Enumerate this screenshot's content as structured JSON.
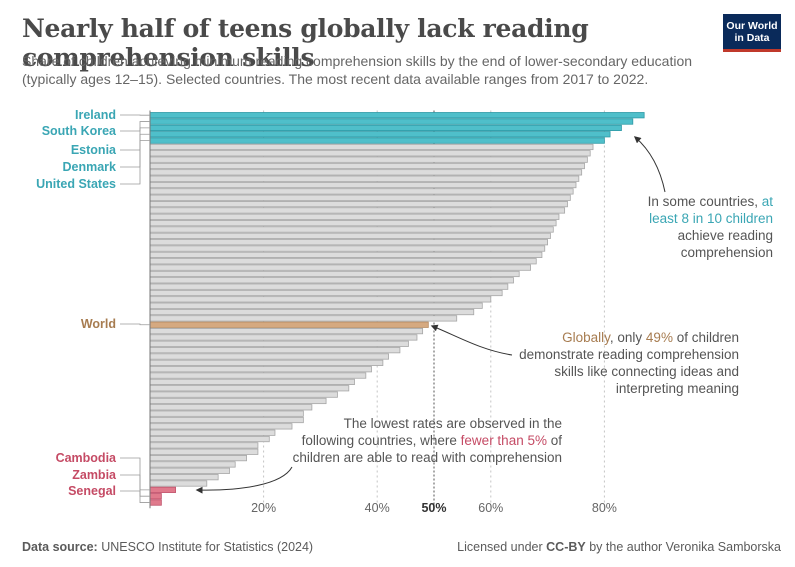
{
  "header": {
    "title": "Nearly half of teens globally lack reading comprehension skills",
    "subtitle": "Share of children achieving minimum reading comprehension skills by the end of lower-secondary education (typically ages 12–15). Selected countries. The most recent data available ranges from 2017 to 2022.",
    "logo_line1": "Our World",
    "logo_line2": "in Data"
  },
  "footer": {
    "source_label": "Data source:",
    "source_text": "UNESCO Institute for Statistics (2024)",
    "license_prefix": "Licensed under",
    "license_name": "CC-BY",
    "license_suffix": "by the author Veronika Samborska"
  },
  "colors": {
    "highlight_high": "#4fbfca",
    "highlight_low": "#e07a8c",
    "world": "#d5a980",
    "grey_bar": "#dcdcdc",
    "label_high": "#3aa6b4",
    "label_low": "#c54b65",
    "label_world": "#a77c50"
  },
  "chart_data": {
    "type": "bar",
    "orientation": "horizontal",
    "x_ticks": [
      20,
      40,
      50,
      60,
      80
    ],
    "x_tick_labels": [
      "20%",
      "40%",
      "50%",
      "60%",
      "80%"
    ],
    "bold_tick": 50,
    "xlim": [
      0,
      90
    ],
    "grid": "vertical dotted",
    "labelled_bars": [
      {
        "label": "Ireland",
        "value": 87,
        "group": "high"
      },
      {
        "label": "South Korea",
        "value": 85,
        "group": "high"
      },
      {
        "label": "Estonia",
        "value": 83,
        "group": "high"
      },
      {
        "label": "Denmark",
        "value": 81,
        "group": "high"
      },
      {
        "label": "United States",
        "value": 80,
        "group": "high"
      },
      {
        "label": "World",
        "value": 49,
        "group": "world"
      },
      {
        "label": "Cambodia",
        "value": 4.5,
        "group": "low"
      },
      {
        "label": "Zambia",
        "value": 2,
        "group": "low"
      },
      {
        "label": "Senegal",
        "value": 2,
        "group": "low"
      }
    ],
    "bars": [
      {
        "value": 87,
        "group": "high"
      },
      {
        "value": 85,
        "group": "high"
      },
      {
        "value": 83,
        "group": "high"
      },
      {
        "value": 81,
        "group": "high"
      },
      {
        "value": 80,
        "group": "high"
      },
      {
        "value": 78
      },
      {
        "value": 77.5
      },
      {
        "value": 77
      },
      {
        "value": 76.5
      },
      {
        "value": 76
      },
      {
        "value": 75.5
      },
      {
        "value": 75
      },
      {
        "value": 74.5
      },
      {
        "value": 74
      },
      {
        "value": 73.5
      },
      {
        "value": 73
      },
      {
        "value": 72
      },
      {
        "value": 71.5
      },
      {
        "value": 71
      },
      {
        "value": 70.5
      },
      {
        "value": 70
      },
      {
        "value": 69.5
      },
      {
        "value": 69
      },
      {
        "value": 68
      },
      {
        "value": 67
      },
      {
        "value": 65
      },
      {
        "value": 64
      },
      {
        "value": 63
      },
      {
        "value": 62
      },
      {
        "value": 60
      },
      {
        "value": 58.5
      },
      {
        "value": 57
      },
      {
        "value": 54
      },
      {
        "value": 49,
        "group": "world"
      },
      {
        "value": 48
      },
      {
        "value": 47
      },
      {
        "value": 45.5
      },
      {
        "value": 44
      },
      {
        "value": 42
      },
      {
        "value": 41
      },
      {
        "value": 39
      },
      {
        "value": 38
      },
      {
        "value": 36
      },
      {
        "value": 35
      },
      {
        "value": 33
      },
      {
        "value": 31
      },
      {
        "value": 28.5
      },
      {
        "value": 27
      },
      {
        "value": 27
      },
      {
        "value": 25
      },
      {
        "value": 22
      },
      {
        "value": 21
      },
      {
        "value": 19
      },
      {
        "value": 19
      },
      {
        "value": 17
      },
      {
        "value": 15
      },
      {
        "value": 14
      },
      {
        "value": 12
      },
      {
        "value": 10
      },
      {
        "value": 4.5,
        "group": "low"
      },
      {
        "value": 2,
        "group": "low"
      },
      {
        "value": 2,
        "group": "low"
      }
    ],
    "annotations": {
      "top": {
        "line1_pre": "In some countries,",
        "line1_hl": "at",
        "line2_hl": "least 8 in 10 children",
        "line3": "achieve reading",
        "line4": "comprehension"
      },
      "middle": {
        "line1_hl": "Globally",
        "line1_mid": ", only",
        "line1_hl2": "49%",
        "line1_post": "of children",
        "line2": "demonstrate reading comprehension",
        "line3": "skills like connecting ideas and",
        "line4": "interpreting meaning"
      },
      "bottom": {
        "line1": "The lowest rates are observed in the",
        "line2_pre": "following countries, where",
        "line2_hl": "fewer than 5%",
        "line2_post": "of",
        "line3": "children are able to read with comprehension"
      }
    }
  }
}
